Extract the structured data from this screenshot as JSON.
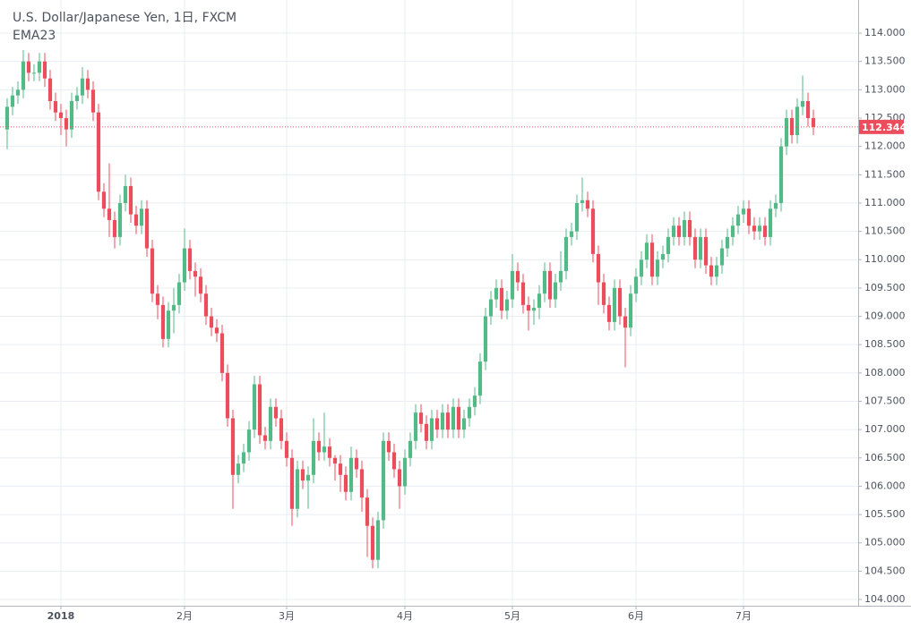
{
  "chart_data": {
    "type": "candlestick",
    "title": "U.S. Dollar/Japanese Yen, 1日, FXCM",
    "indicator": "EMA23",
    "up_color": "#53b987",
    "down_color": "#eb4d5c",
    "grid": true,
    "last_price": 112.344,
    "xlim": [
      -1.33,
      158.33
    ],
    "xticks": [
      {
        "value": 10,
        "label": "2018"
      },
      {
        "value": 33,
        "label": "2月"
      },
      {
        "value": 52,
        "label": "3月"
      },
      {
        "value": 74,
        "label": "4月"
      },
      {
        "value": 94,
        "label": "5月"
      },
      {
        "value": 117,
        "label": "6月"
      },
      {
        "value": 137,
        "label": "7月"
      }
    ],
    "ylim": [
      103.89,
      114.585
    ],
    "yticks": [
      {
        "value": 104,
        "label": "104.000"
      },
      {
        "value": 104.5,
        "label": "104.500"
      },
      {
        "value": 105,
        "label": "105.000"
      },
      {
        "value": 105.5,
        "label": "105.500"
      },
      {
        "value": 106,
        "label": "106.000"
      },
      {
        "value": 106.5,
        "label": "106.500"
      },
      {
        "value": 107,
        "label": "107.000"
      },
      {
        "value": 107.5,
        "label": "107.500"
      },
      {
        "value": 108,
        "label": "108.000"
      },
      {
        "value": 108.5,
        "label": "108.500"
      },
      {
        "value": 109,
        "label": "109.000"
      },
      {
        "value": 109.5,
        "label": "109.500"
      },
      {
        "value": 110,
        "label": "110.000"
      },
      {
        "value": 110.5,
        "label": "110.500"
      },
      {
        "value": 111,
        "label": "111.000"
      },
      {
        "value": 111.5,
        "label": "111.500"
      },
      {
        "value": 112,
        "label": "112.000"
      },
      {
        "value": 112.5,
        "label": "112.500"
      },
      {
        "value": 113,
        "label": "113.000"
      },
      {
        "value": 113.5,
        "label": "113.500"
      },
      {
        "value": 114,
        "label": "114.000"
      }
    ],
    "open": [
      112.3,
      112.7,
      112.9,
      113.0,
      113.5,
      113.3,
      113.3,
      113.5,
      113.2,
      112.8,
      112.6,
      112.5,
      112.3,
      112.8,
      112.9,
      113.2,
      113.0,
      112.6,
      111.2,
      110.9,
      110.7,
      110.4,
      111.0,
      111.3,
      110.8,
      110.6,
      110.9,
      110.2,
      109.4,
      109.2,
      108.6,
      109.1,
      109.2,
      109.6,
      110.2,
      109.8,
      109.7,
      109.4,
      109.0,
      108.8,
      108.7,
      108.0,
      107.2,
      106.2,
      106.4,
      106.6,
      107.0,
      107.8,
      106.9,
      106.8,
      107.4,
      107.2,
      106.8,
      106.5,
      105.6,
      106.3,
      106.1,
      106.2,
      106.8,
      106.6,
      106.7,
      106.5,
      106.4,
      106.2,
      105.9,
      106.5,
      106.3,
      105.8,
      105.3,
      104.7,
      105.4,
      106.8,
      106.6,
      106.3,
      106.0,
      106.5,
      106.8,
      107.3,
      107.1,
      106.8,
      107.2,
      107.0,
      107.3,
      107.0,
      107.4,
      107.0,
      107.2,
      107.4,
      107.6,
      108.2,
      109.0,
      109.3,
      109.5,
      109.1,
      109.3,
      109.8,
      109.6,
      109.2,
      109.1,
      109.15,
      109.4,
      109.8,
      109.3,
      109.6,
      109.8,
      110.4,
      110.5,
      111.0,
      111.05,
      110.9,
      110.1,
      109.6,
      109.2,
      108.9,
      109.5,
      109.0,
      108.8,
      109.4,
      109.7,
      110.0,
      110.3,
      109.7,
      110.0,
      110.1,
      110.4,
      110.6,
      110.4,
      110.7,
      110.4,
      110.0,
      110.4,
      109.9,
      109.7,
      109.9,
      110.2,
      110.4,
      110.6,
      110.8,
      110.9,
      110.6,
      110.5,
      110.6,
      110.4,
      110.9,
      111.0,
      112.0,
      112.5,
      112.2,
      112.7,
      112.8,
      112.5
    ],
    "high": [
      112.85,
      113.05,
      113.15,
      113.7,
      113.65,
      113.45,
      113.65,
      113.65,
      113.35,
      112.95,
      112.75,
      112.65,
      112.95,
      113.05,
      113.4,
      113.35,
      113.15,
      112.75,
      111.35,
      111.7,
      110.85,
      111.15,
      111.5,
      111.45,
      110.95,
      111.05,
      111.05,
      110.35,
      109.55,
      109.35,
      109.25,
      109.5,
      109.75,
      110.55,
      110.35,
      109.95,
      109.85,
      109.55,
      109.15,
      108.95,
      108.85,
      108.15,
      107.35,
      106.55,
      106.75,
      107.15,
      107.95,
      107.95,
      107.05,
      107.55,
      107.55,
      107.35,
      106.95,
      106.65,
      106.45,
      106.45,
      106.35,
      107.2,
      106.95,
      107.3,
      106.85,
      106.55,
      106.55,
      106.35,
      106.7,
      106.65,
      106.45,
      105.95,
      105.45,
      105.55,
      106.95,
      106.95,
      106.75,
      106.45,
      106.65,
      106.95,
      107.45,
      107.45,
      107.25,
      107.35,
      107.35,
      107.45,
      107.45,
      107.55,
      107.55,
      107.35,
      107.55,
      107.75,
      108.35,
      109.15,
      109.45,
      109.65,
      109.65,
      109.45,
      110.1,
      109.95,
      109.75,
      109.35,
      109.3,
      109.55,
      109.95,
      109.95,
      109.75,
      110.15,
      110.55,
      110.65,
      111.15,
      111.45,
      111.2,
      111.05,
      110.25,
      109.75,
      109.35,
      109.65,
      109.65,
      109.15,
      109.55,
      109.85,
      110.15,
      110.45,
      110.45,
      110.15,
      110.25,
      110.55,
      110.75,
      110.75,
      110.85,
      110.85,
      110.55,
      110.55,
      110.55,
      110.05,
      110.05,
      110.35,
      110.55,
      110.75,
      110.95,
      111.05,
      111.05,
      110.75,
      110.75,
      110.75,
      111.05,
      111.15,
      112.15,
      112.65,
      112.65,
      112.85,
      113.25,
      112.95,
      112.65
    ],
    "low": [
      111.95,
      112.55,
      112.75,
      112.85,
      113.15,
      113.15,
      113.15,
      113.05,
      112.65,
      112.45,
      112.2,
      112.0,
      112.15,
      112.65,
      112.75,
      112.85,
      112.45,
      111.05,
      110.75,
      110.4,
      110.2,
      110.25,
      110.85,
      110.65,
      110.45,
      110.45,
      110.05,
      109.25,
      108.95,
      108.45,
      108.45,
      108.7,
      109.05,
      109.45,
      109.65,
      109.35,
      109.25,
      108.85,
      108.65,
      108.55,
      107.85,
      107.05,
      105.6,
      106.05,
      106.25,
      106.45,
      106.85,
      106.75,
      106.65,
      106.65,
      107.05,
      106.65,
      106.35,
      105.3,
      105.45,
      105.95,
      105.6,
      106.05,
      106.45,
      106.45,
      106.35,
      106.1,
      105.9,
      105.75,
      105.75,
      106.15,
      105.55,
      104.75,
      104.55,
      104.55,
      105.25,
      106.45,
      106.15,
      105.6,
      105.85,
      106.35,
      106.65,
      106.95,
      106.65,
      106.65,
      106.85,
      106.85,
      106.85,
      106.85,
      106.85,
      106.85,
      107.05,
      107.25,
      107.45,
      108.05,
      108.85,
      109.15,
      108.95,
      108.95,
      109.15,
      109.45,
      109.05,
      108.75,
      108.85,
      108.95,
      109.25,
      109.15,
      109.15,
      109.45,
      109.65,
      110.25,
      110.35,
      110.85,
      110.75,
      109.95,
      109.2,
      109.05,
      108.75,
      108.75,
      108.85,
      108.1,
      108.65,
      109.25,
      109.55,
      109.85,
      109.55,
      109.55,
      109.85,
      109.95,
      110.25,
      110.25,
      110.25,
      110.25,
      109.85,
      109.85,
      109.75,
      109.55,
      109.55,
      109.75,
      110.05,
      110.25,
      110.45,
      110.65,
      110.45,
      110.35,
      110.35,
      110.25,
      110.25,
      110.75,
      110.85,
      111.85,
      112.05,
      112.05,
      112.55,
      112.35,
      112.2
    ],
    "close": [
      112.7,
      112.9,
      113.0,
      113.5,
      113.3,
      113.3,
      113.5,
      113.2,
      112.8,
      112.6,
      112.5,
      112.3,
      112.8,
      112.9,
      113.2,
      113.0,
      112.6,
      111.2,
      110.9,
      110.7,
      110.4,
      111.0,
      111.3,
      110.8,
      110.6,
      110.9,
      110.2,
      109.4,
      109.2,
      108.6,
      109.1,
      109.2,
      109.6,
      110.2,
      109.8,
      109.7,
      109.4,
      109.0,
      108.8,
      108.7,
      108.0,
      107.2,
      106.2,
      106.4,
      106.6,
      107.0,
      107.8,
      106.9,
      106.8,
      107.4,
      107.2,
      106.8,
      106.5,
      105.6,
      106.3,
      106.1,
      106.2,
      106.8,
      106.6,
      106.7,
      106.5,
      106.4,
      106.2,
      105.9,
      106.5,
      106.3,
      105.8,
      105.3,
      104.7,
      105.4,
      106.8,
      106.6,
      106.3,
      106.0,
      106.5,
      106.8,
      107.3,
      107.1,
      106.8,
      107.2,
      107.0,
      107.3,
      107.0,
      107.4,
      107.0,
      107.2,
      107.4,
      107.6,
      108.2,
      109.0,
      109.3,
      109.5,
      109.1,
      109.3,
      109.8,
      109.6,
      109.2,
      109.1,
      109.15,
      109.4,
      109.8,
      109.3,
      109.6,
      109.8,
      110.4,
      110.5,
      111.0,
      111.05,
      110.9,
      110.1,
      109.6,
      109.2,
      108.9,
      109.5,
      109.0,
      108.8,
      109.4,
      109.7,
      110.0,
      110.3,
      109.7,
      110.0,
      110.1,
      110.4,
      110.6,
      110.4,
      110.7,
      110.4,
      110.0,
      110.4,
      109.9,
      109.7,
      109.9,
      110.2,
      110.4,
      110.6,
      110.8,
      110.9,
      110.6,
      110.5,
      110.6,
      110.4,
      110.9,
      111.0,
      112.0,
      112.5,
      112.2,
      112.7,
      112.8,
      112.5,
      112.344
    ]
  }
}
